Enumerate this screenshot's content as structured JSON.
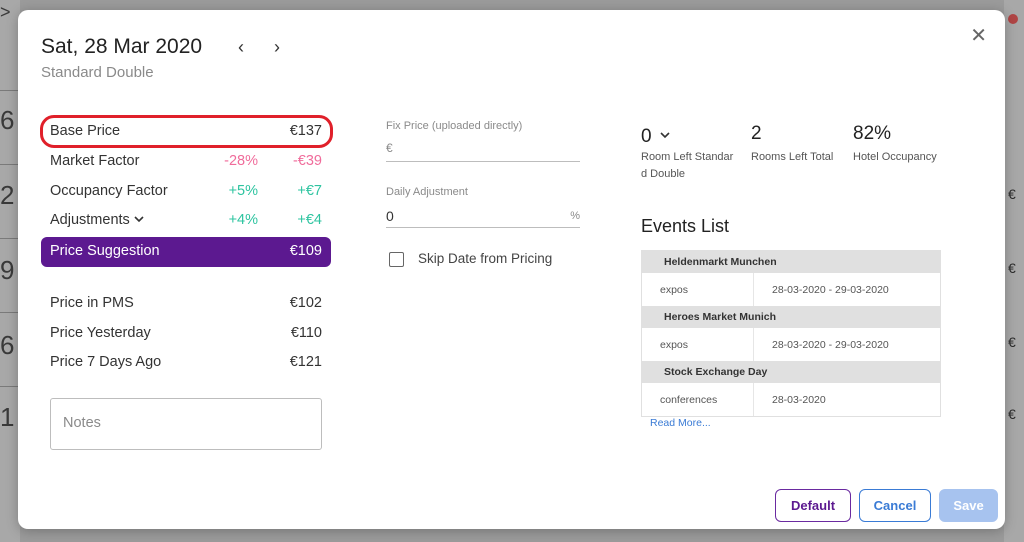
{
  "background": {
    "left_glyphs": [
      ">",
      "6",
      "2",
      "9",
      "6",
      "1"
    ],
    "right_glyphs": [
      "€",
      "€",
      "€",
      "€"
    ]
  },
  "header": {
    "date": "Sat, 28 Mar 2020",
    "prev_icon": "‹",
    "next_icon": "›",
    "room_type": "Standard Double",
    "close_icon": "✕"
  },
  "pricing": {
    "base_price": {
      "label": "Base Price",
      "value": "€137"
    },
    "market_factor": {
      "label": "Market Factor",
      "percent": "-28%",
      "amount": "-€39"
    },
    "occupancy_factor": {
      "label": "Occupancy Factor",
      "percent": "+5%",
      "amount": "+€7"
    },
    "adjustments": {
      "label": "Adjustments",
      "percent": "+4%",
      "amount": "+€4"
    },
    "price_suggestion": {
      "label": "Price Suggestion",
      "value": "€109"
    },
    "price_in_pms": {
      "label": "Price in PMS",
      "value": "€102"
    },
    "price_yesterday": {
      "label": "Price Yesterday",
      "value": "€110"
    },
    "price_7_days_ago": {
      "label": "Price 7 Days Ago",
      "value": "€121"
    }
  },
  "notes": {
    "placeholder": "Notes"
  },
  "fix_price": {
    "label": "Fix Price (uploaded directly)",
    "prefix": "€",
    "value": ""
  },
  "daily_adjustment": {
    "label": "Daily Adjustment",
    "value": "0",
    "suffix": "%"
  },
  "skip_date": {
    "label": "Skip Date from Pricing",
    "checked": false
  },
  "stats": [
    {
      "value": "0",
      "label_line1": "Room Left Standar",
      "label_line2": "d Double"
    },
    {
      "value": "2",
      "label_line1": "Rooms Left Total",
      "label_line2": ""
    },
    {
      "value": "82%",
      "label_line1": "Hotel Occupancy",
      "label_line2": ""
    }
  ],
  "events": {
    "title": "Events List",
    "items": [
      {
        "name": "Heldenmarkt Munchen",
        "category": "expos",
        "dates": "28-03-2020 - 29-03-2020"
      },
      {
        "name": "Heroes Market Munich",
        "category": "expos",
        "dates": "28-03-2020 - 29-03-2020"
      },
      {
        "name": "Stock Exchange Day",
        "category": "conferences",
        "dates": "28-03-2020"
      }
    ],
    "read_more": "Read More..."
  },
  "footer": {
    "default_label": "Default",
    "cancel_label": "Cancel",
    "save_label": "Save"
  },
  "colors": {
    "accent_purple": "#5c1990",
    "negative": "#f06c9b",
    "positive": "#2ec4a0",
    "link_blue": "#3a7bd5",
    "highlight_red": "#e0202a"
  }
}
